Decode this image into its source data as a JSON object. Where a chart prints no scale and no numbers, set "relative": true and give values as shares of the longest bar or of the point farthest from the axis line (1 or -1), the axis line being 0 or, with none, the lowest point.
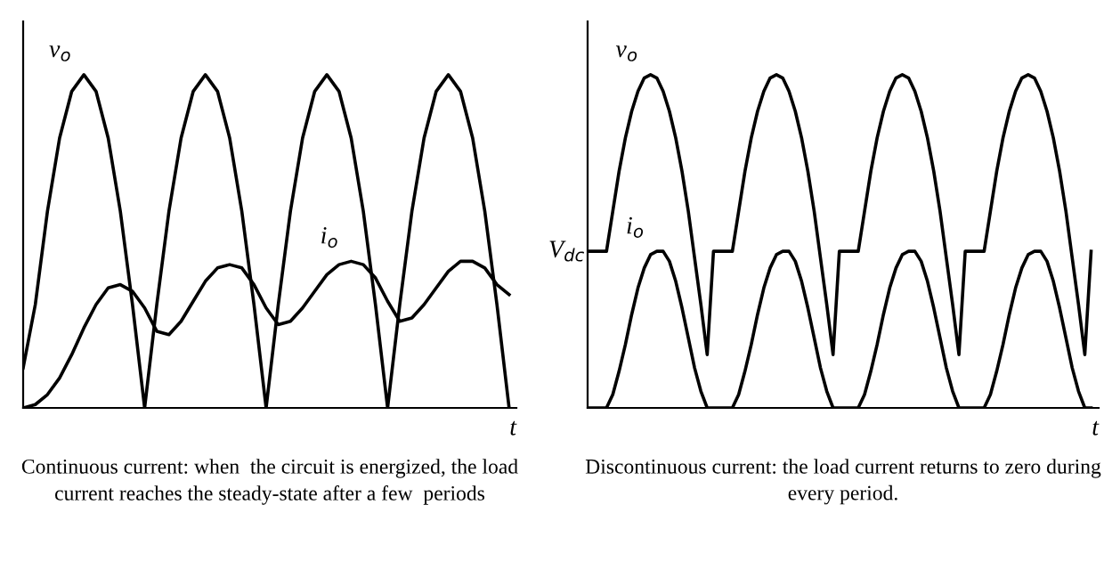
{
  "chart_data": [
    {
      "type": "line",
      "relative": true,
      "xlabel": "t",
      "categories": [
        null,
        null,
        null,
        null,
        null,
        null,
        null,
        null,
        null,
        null,
        null,
        null,
        null,
        null,
        null,
        null,
        null,
        null,
        null,
        null,
        null,
        null,
        null,
        null,
        null,
        null,
        null,
        null,
        null,
        null,
        null,
        null,
        null,
        null,
        null,
        null,
        null,
        null,
        null,
        null,
        null
      ],
      "series": [
        {
          "name": "v$_{o}$",
          "color": "#000000",
          "values": [
            0.12,
            0.31,
            0.59,
            0.81,
            0.95,
            1,
            0.95,
            0.81,
            0.59,
            0.31,
            0,
            0.31,
            0.59,
            0.81,
            0.95,
            1,
            0.95,
            0.81,
            0.59,
            0.31,
            0,
            0.31,
            0.59,
            0.81,
            0.95,
            1,
            0.95,
            0.81,
            0.59,
            0.31,
            0,
            0.31,
            0.59,
            0.81,
            0.95,
            1,
            0.95,
            0.81,
            0.59,
            0.31,
            0
          ]
        },
        {
          "name": "i$_{o}$",
          "color": "#000000",
          "values": [
            0,
            0.01,
            0.04,
            0.09,
            0.16,
            0.24,
            0.31,
            0.36,
            0.37,
            0.35,
            0.3,
            0.23,
            0.22,
            0.26,
            0.32,
            0.38,
            0.42,
            0.43,
            0.42,
            0.37,
            0.3,
            0.25,
            0.26,
            0.3,
            0.35,
            0.4,
            0.43,
            0.44,
            0.43,
            0.39,
            0.32,
            0.26,
            0.27,
            0.31,
            0.36,
            0.41,
            0.44,
            0.44,
            0.42,
            0.37,
            0.34
          ]
        }
      ],
      "annotations": [
        "Continuous current: when  the circuit is energized, the load current reaches the steady-state after a few  periods"
      ]
    },
    {
      "type": "line",
      "relative": true,
      "xlabel": "t",
      "categories": [
        null,
        null,
        null,
        null,
        null,
        null,
        null,
        null,
        null,
        null,
        null,
        null,
        null,
        null,
        null,
        null,
        null,
        null,
        null,
        null,
        null,
        null,
        null,
        null,
        null,
        null,
        null,
        null,
        null,
        null,
        null,
        null,
        null,
        null,
        null,
        null,
        null,
        null,
        null,
        null,
        null,
        null,
        null,
        null,
        null,
        null,
        null,
        null,
        null,
        null,
        null,
        null,
        null,
        null,
        null,
        null,
        null,
        null,
        null,
        null,
        null,
        null,
        null,
        null,
        null,
        null,
        null,
        null,
        null,
        null,
        null,
        null,
        null,
        null,
        null,
        null,
        null,
        null,
        null,
        null,
        null
      ],
      "series": [
        {
          "name": "v$_{o}$",
          "color": "#000000",
          "values": [
            0.47,
            0.47,
            0.47,
            0.47,
            0.59,
            0.71,
            0.81,
            0.89,
            0.95,
            0.99,
            1,
            0.99,
            0.95,
            0.89,
            0.81,
            0.71,
            0.59,
            0.45,
            0.31,
            0.16,
            0.47,
            0.47,
            0.47,
            0.47,
            0.59,
            0.71,
            0.81,
            0.89,
            0.95,
            0.99,
            1,
            0.99,
            0.95,
            0.89,
            0.81,
            0.71,
            0.59,
            0.45,
            0.31,
            0.16,
            0.47,
            0.47,
            0.47,
            0.47,
            0.59,
            0.71,
            0.81,
            0.89,
            0.95,
            0.99,
            1,
            0.99,
            0.95,
            0.89,
            0.81,
            0.71,
            0.59,
            0.45,
            0.31,
            0.16,
            0.47,
            0.47,
            0.47,
            0.47,
            0.59,
            0.71,
            0.81,
            0.89,
            0.95,
            0.99,
            1,
            0.99,
            0.95,
            0.89,
            0.81,
            0.71,
            0.59,
            0.45,
            0.31,
            0.16,
            0.47
          ]
        },
        {
          "name": "i$_{o}$",
          "color": "#000000",
          "values": [
            0,
            0,
            0,
            0,
            0.04,
            0.11,
            0.19,
            0.28,
            0.36,
            0.42,
            0.46,
            0.47,
            0.47,
            0.44,
            0.38,
            0.3,
            0.21,
            0.12,
            0.05,
            0,
            0,
            0,
            0,
            0,
            0.04,
            0.11,
            0.19,
            0.28,
            0.36,
            0.42,
            0.46,
            0.47,
            0.47,
            0.44,
            0.38,
            0.3,
            0.21,
            0.12,
            0.05,
            0,
            0,
            0,
            0,
            0,
            0.04,
            0.11,
            0.19,
            0.28,
            0.36,
            0.42,
            0.46,
            0.47,
            0.47,
            0.44,
            0.38,
            0.3,
            0.21,
            0.12,
            0.05,
            0,
            0,
            0,
            0,
            0,
            0.04,
            0.11,
            0.19,
            0.28,
            0.36,
            0.42,
            0.46,
            0.47,
            0.47,
            0.44,
            0.38,
            0.3,
            0.21,
            0.12,
            0.05,
            0,
            0
          ]
        }
      ],
      "annotations": [
        "V$_{dc}$",
        "Discontinuous current: the load current returns to zero during every period."
      ]
    }
  ]
}
